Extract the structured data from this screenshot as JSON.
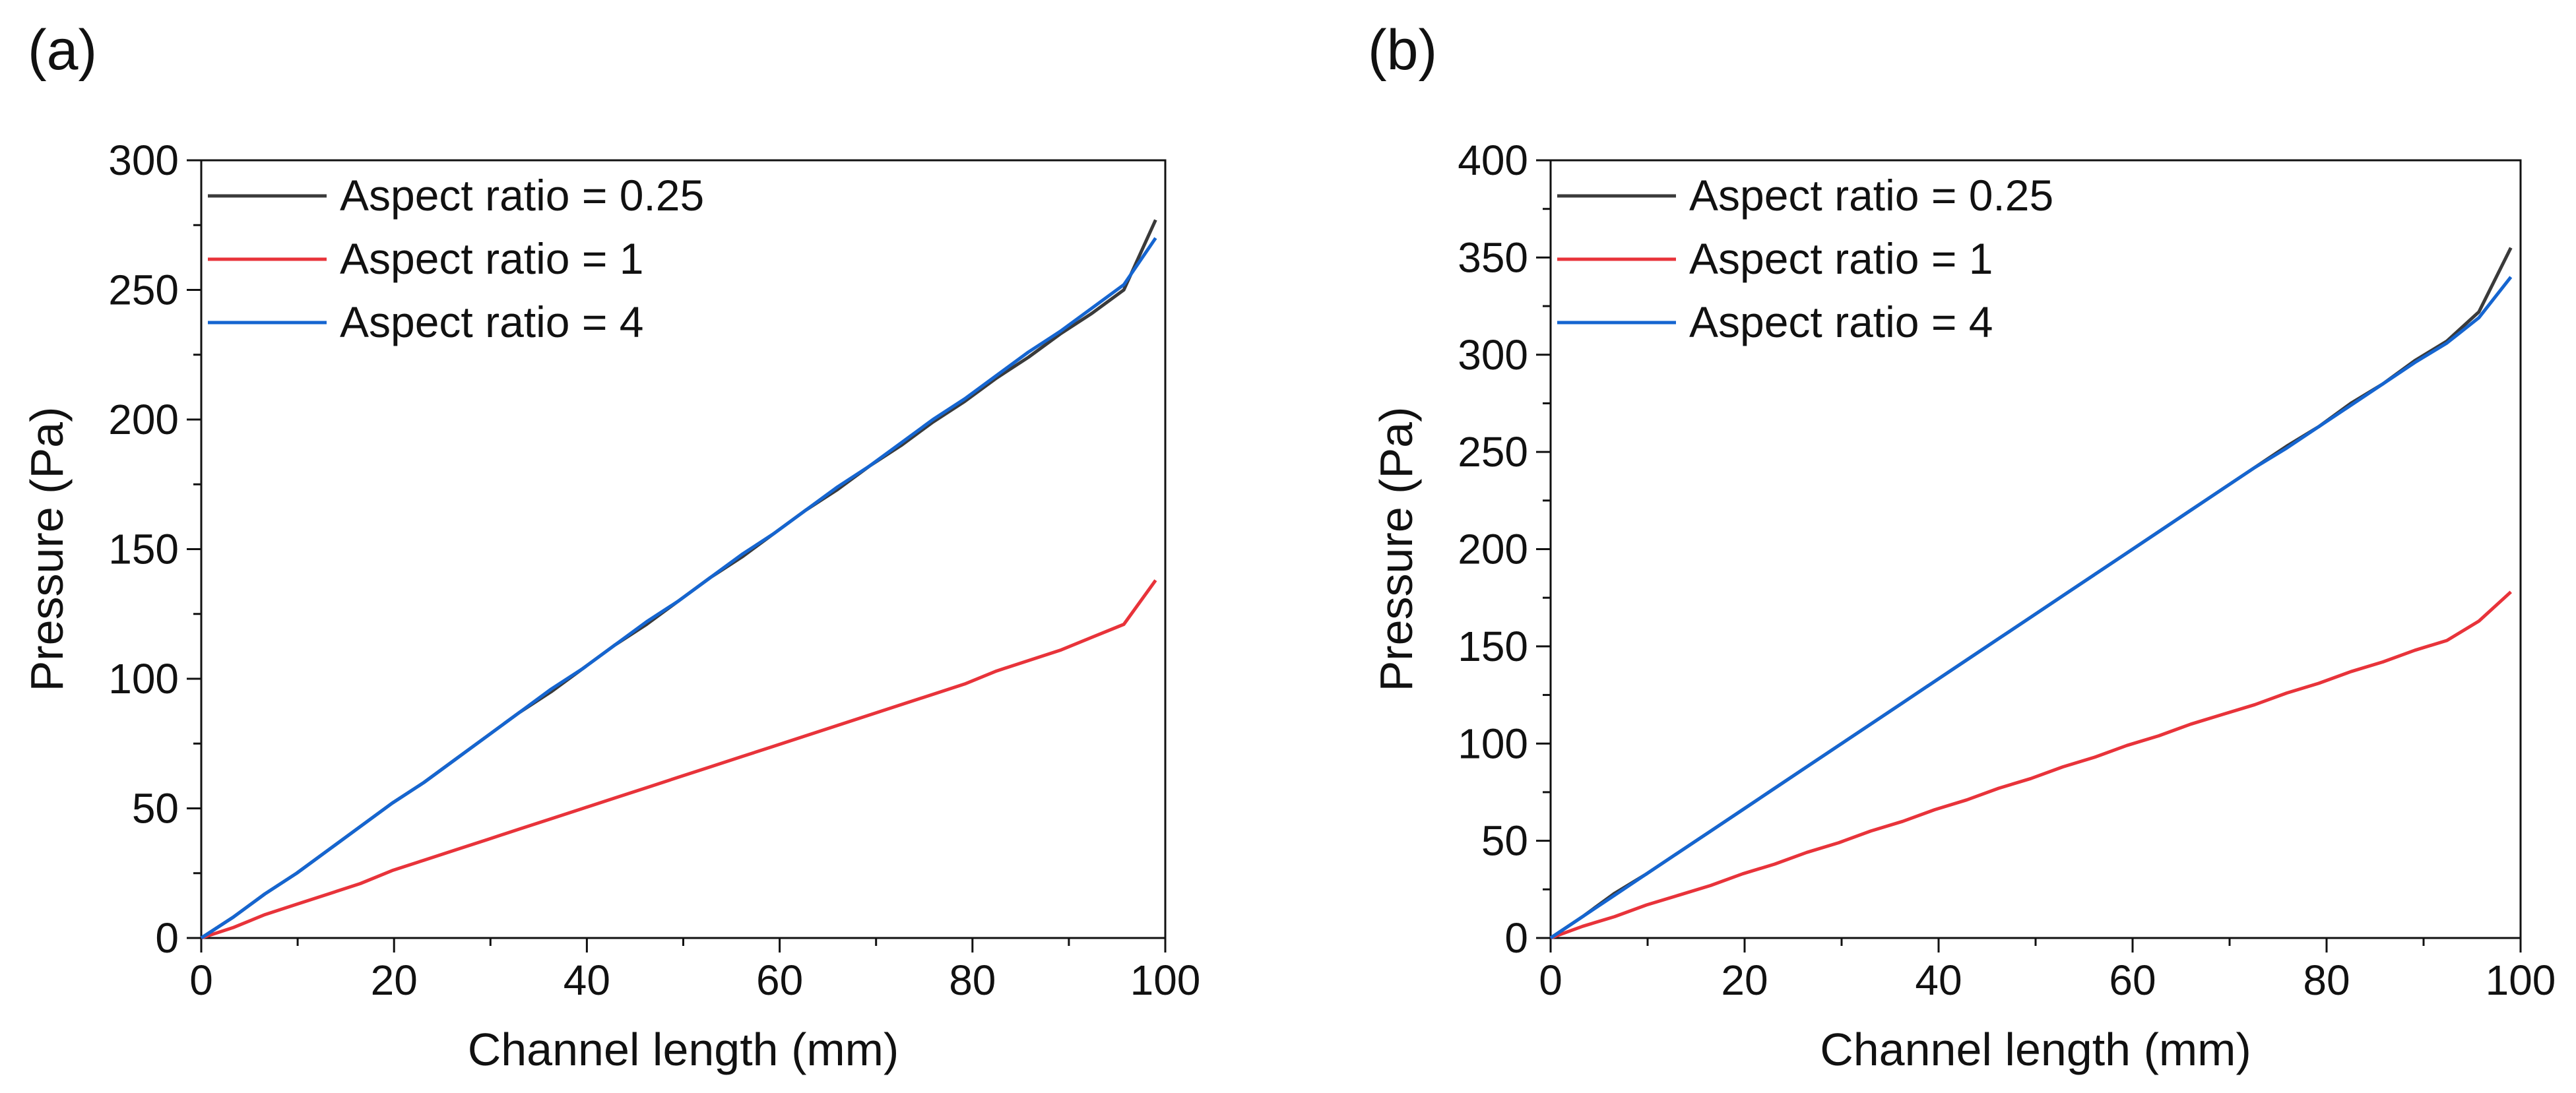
{
  "chart_data": [
    {
      "panel_label": "(a)",
      "type": "line",
      "xlabel": "Channel length (mm)",
      "ylabel": "Pressure (Pa)",
      "xlim": [
        0,
        100
      ],
      "ylim": [
        0,
        300
      ],
      "xticks": [
        0,
        20,
        40,
        60,
        80,
        100
      ],
      "yticks": [
        0,
        50,
        100,
        150,
        200,
        250,
        300
      ],
      "legend_position": "top-left",
      "grid": false,
      "series": [
        {
          "name": "Aspect ratio = 0.25",
          "color": "#3a3a3a",
          "x": [
            0,
            3.3,
            6.6,
            9.9,
            13.2,
            16.5,
            19.8,
            23.1,
            26.4,
            29.7,
            33,
            36.3,
            39.6,
            42.9,
            46.2,
            49.5,
            52.8,
            56.1,
            59.4,
            62.7,
            66,
            69.3,
            72.6,
            75.9,
            79.2,
            82.5,
            85.8,
            89.1,
            92.4,
            95.7,
            99
          ],
          "y": [
            0,
            8,
            17,
            25,
            34,
            43,
            52,
            60,
            69,
            78,
            87,
            95,
            104,
            113,
            121,
            130,
            139,
            147,
            156,
            165,
            173,
            182,
            190,
            199,
            207,
            216,
            224,
            233,
            241,
            250,
            277
          ]
        },
        {
          "name": "Aspect ratio = 1",
          "color": "#e8333a",
          "x": [
            0,
            3.3,
            6.6,
            9.9,
            13.2,
            16.5,
            19.8,
            23.1,
            26.4,
            29.7,
            33,
            36.3,
            39.6,
            42.9,
            46.2,
            49.5,
            52.8,
            56.1,
            59.4,
            62.7,
            66,
            69.3,
            72.6,
            75.9,
            79.2,
            82.5,
            85.8,
            89.1,
            92.4,
            95.7,
            99
          ],
          "y": [
            0,
            4,
            9,
            13,
            17,
            21,
            26,
            30,
            34,
            38,
            42,
            46,
            50,
            54,
            58,
            62,
            66,
            70,
            74,
            78,
            82,
            86,
            90,
            94,
            98,
            103,
            107,
            111,
            116,
            121,
            138
          ]
        },
        {
          "name": "Aspect ratio = 4",
          "color": "#1565d0",
          "x": [
            0,
            3.3,
            6.6,
            9.9,
            13.2,
            16.5,
            19.8,
            23.1,
            26.4,
            29.7,
            33,
            36.3,
            39.6,
            42.9,
            46.2,
            49.5,
            52.8,
            56.1,
            59.4,
            62.7,
            66,
            69.3,
            72.6,
            75.9,
            79.2,
            82.5,
            85.8,
            89.1,
            92.4,
            95.7,
            99
          ],
          "y": [
            0,
            8,
            17,
            25,
            34,
            43,
            52,
            60,
            69,
            78,
            87,
            96,
            104,
            113,
            122,
            130,
            139,
            148,
            156,
            165,
            174,
            182,
            191,
            200,
            208,
            217,
            226,
            234,
            243,
            252,
            270
          ]
        }
      ]
    },
    {
      "panel_label": "(b)",
      "type": "line",
      "xlabel": "Channel length (mm)",
      "ylabel": "Pressure (Pa)",
      "xlim": [
        0,
        100
      ],
      "ylim": [
        0,
        400
      ],
      "xticks": [
        0,
        20,
        40,
        60,
        80,
        100
      ],
      "yticks": [
        0,
        50,
        100,
        150,
        200,
        250,
        300,
        350,
        400
      ],
      "legend_position": "top-left",
      "grid": false,
      "series": [
        {
          "name": "Aspect ratio = 0.25",
          "color": "#3a3a3a",
          "x": [
            0,
            3.3,
            6.6,
            9.9,
            13.2,
            16.5,
            19.8,
            23.1,
            26.4,
            29.7,
            33,
            36.3,
            39.6,
            42.9,
            46.2,
            49.5,
            52.8,
            56.1,
            59.4,
            62.7,
            66,
            69.3,
            72.6,
            75.9,
            79.2,
            82.5,
            85.8,
            89.1,
            92.4,
            95.7,
            99
          ],
          "y": [
            0,
            11,
            23,
            33,
            44,
            55,
            66,
            77,
            88,
            99,
            110,
            121,
            132,
            143,
            154,
            165,
            176,
            187,
            198,
            209,
            220,
            231,
            242,
            253,
            263,
            275,
            285,
            297,
            307,
            322,
            355
          ]
        },
        {
          "name": "Aspect ratio = 1",
          "color": "#e8333a",
          "x": [
            0,
            3.3,
            6.6,
            9.9,
            13.2,
            16.5,
            19.8,
            23.1,
            26.4,
            29.7,
            33,
            36.3,
            39.6,
            42.9,
            46.2,
            49.5,
            52.8,
            56.1,
            59.4,
            62.7,
            66,
            69.3,
            72.6,
            75.9,
            79.2,
            82.5,
            85.8,
            89.1,
            92.4,
            95.7,
            99
          ],
          "y": [
            0,
            6,
            11,
            17,
            22,
            27,
            33,
            38,
            44,
            49,
            55,
            60,
            66,
            71,
            77,
            82,
            88,
            93,
            99,
            104,
            110,
            115,
            120,
            126,
            131,
            137,
            142,
            148,
            153,
            163,
            178
          ]
        },
        {
          "name": "Aspect ratio = 4",
          "color": "#1565d0",
          "x": [
            0,
            3.3,
            6.6,
            9.9,
            13.2,
            16.5,
            19.8,
            23.1,
            26.4,
            29.7,
            33,
            36.3,
            39.6,
            42.9,
            46.2,
            49.5,
            52.8,
            56.1,
            59.4,
            62.7,
            66,
            69.3,
            72.6,
            75.9,
            79.2,
            82.5,
            85.8,
            89.1,
            92.4,
            95.7,
            99
          ],
          "y": [
            0,
            11,
            22,
            33,
            44,
            55,
            66,
            77,
            88,
            99,
            110,
            121,
            132,
            143,
            154,
            165,
            176,
            187,
            198,
            209,
            220,
            231,
            242,
            252,
            263,
            274,
            285,
            296,
            306,
            319,
            340
          ]
        }
      ]
    }
  ]
}
